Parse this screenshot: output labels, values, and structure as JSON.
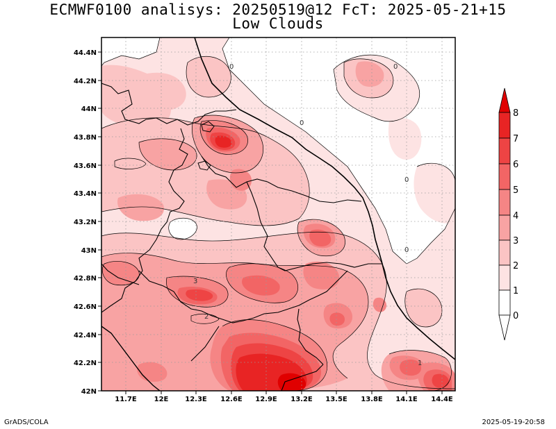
{
  "header": {
    "title_line1": "ECMWF0100 analisys: 20250519@12 FcT: 2025-05-21+15",
    "title_line2": "Low Clouds"
  },
  "map": {
    "lat_labels": [
      "44.4N",
      "44.2N",
      "44N",
      "43.8N",
      "43.6N",
      "43.4N",
      "43.2N",
      "43N",
      "42.8N",
      "42.6N",
      "42.4N",
      "42.2N",
      "42N"
    ],
    "lon_labels": [
      "11.7E",
      "12E",
      "12.3E",
      "12.6E",
      "12.9E",
      "13.2E",
      "13.5E",
      "13.8E",
      "14.1E",
      "14.4E"
    ],
    "contour_labels": [
      "0",
      "0",
      "0",
      "0",
      "0",
      "3",
      "2",
      "1"
    ],
    "colors": {
      "level0": "#ffffff",
      "level1": "#fde3e3",
      "level2": "#fbc4c4",
      "level3": "#f8a3a3",
      "level4": "#f58585",
      "level5": "#f26565",
      "level6": "#ee4444",
      "level7": "#e82424",
      "level8": "#e00000"
    }
  },
  "colorbar": {
    "labels": [
      "8",
      "7",
      "6",
      "5",
      "4",
      "3",
      "2",
      "1",
      "0"
    ]
  },
  "footer": {
    "left": "GrADS/COLA",
    "right": "2025-05-19-20:58"
  }
}
